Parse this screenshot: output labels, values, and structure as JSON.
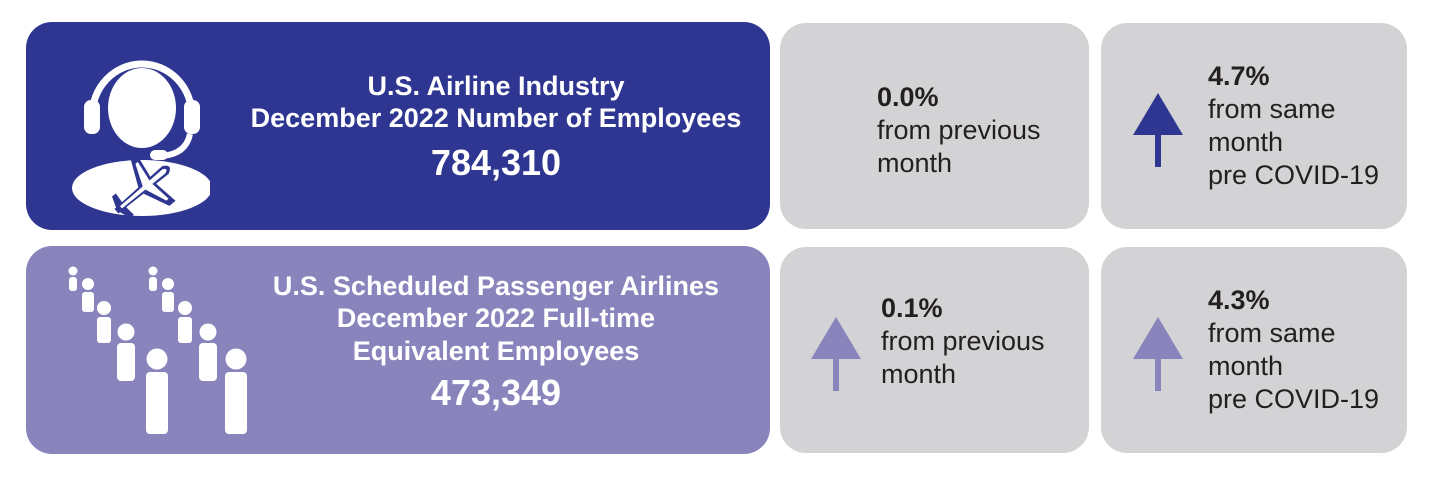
{
  "colors": {
    "industry_panel": "#2e3691",
    "passenger_panel": "#8a84bd",
    "stat_panel": "#d3d3d5",
    "arrow_dark": "#2e3691",
    "arrow_light": "#8a84bd"
  },
  "industry": {
    "title_line1": "U.S. Airline Industry",
    "title_line2": "December 2022 Number of Employees",
    "value": "784,310",
    "icon": "headset-agent-airplane-icon",
    "monthly": {
      "pct": "0.0%",
      "label_line1": "from previous",
      "label_line2": "month"
    },
    "precovid": {
      "pct": "4.7%",
      "label_line1": "from same",
      "label_line2": "month",
      "label_line3": "pre COVID-19",
      "direction": "up"
    }
  },
  "passenger": {
    "title_line1": "U.S. Scheduled Passenger Airlines",
    "title_line2": "December 2022 Full-time",
    "title_line3": "Equivalent Employees",
    "value": "473,349",
    "icon": "people-queue-icon",
    "monthly": {
      "pct": "0.1%",
      "label_line1": "from previous",
      "label_line2": "month",
      "direction": "up"
    },
    "precovid": {
      "pct": "4.3%",
      "label_line1": "from same",
      "label_line2": "month",
      "label_line3": "pre COVID-19",
      "direction": "up"
    }
  }
}
